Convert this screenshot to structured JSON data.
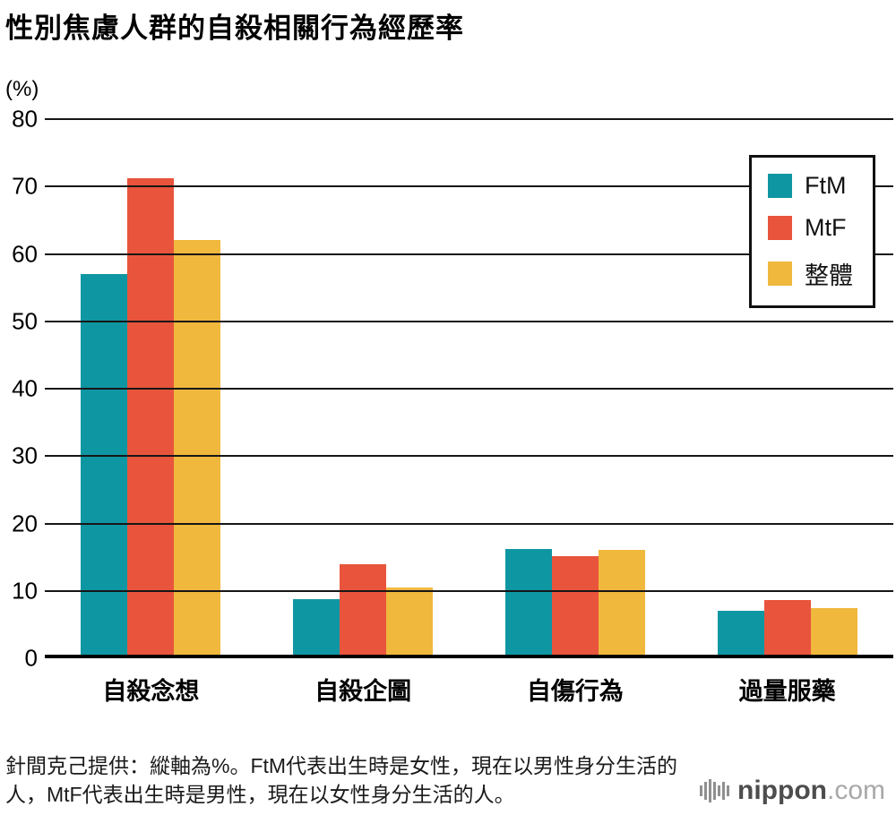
{
  "title": "性別焦慮人群的自殺相關行為經歷率",
  "chart_data": {
    "type": "bar",
    "title": "性別焦慮人群的自殺相關行為經歷率",
    "unit_label": "(%)",
    "xlabel": "",
    "ylabel": "%",
    "ylim": [
      0,
      80
    ],
    "ytick_step": 10,
    "grid": true,
    "legend_position": "top-right",
    "categories": [
      "自殺念想",
      "自殺企圖",
      "自傷行為",
      "過量服藥"
    ],
    "series": [
      {
        "name": "FtM",
        "color": "#0f96a3",
        "values": [
          57.0,
          8.8,
          16.2,
          7.0
        ]
      },
      {
        "name": "MtF",
        "color": "#e8543c",
        "values": [
          71.2,
          13.9,
          15.1,
          8.7
        ]
      },
      {
        "name": "整體",
        "color": "#f0b83d",
        "values": [
          62.0,
          10.5,
          16.1,
          7.5
        ]
      }
    ]
  },
  "footnote": "針間克己提供：縱軸為%。FtM代表出生時是女性，現在以男性身分生活的人，MtF代表出生時是男性，現在以女性身分生活的人。",
  "branding": {
    "name": "nippon",
    "tld": ".com"
  }
}
